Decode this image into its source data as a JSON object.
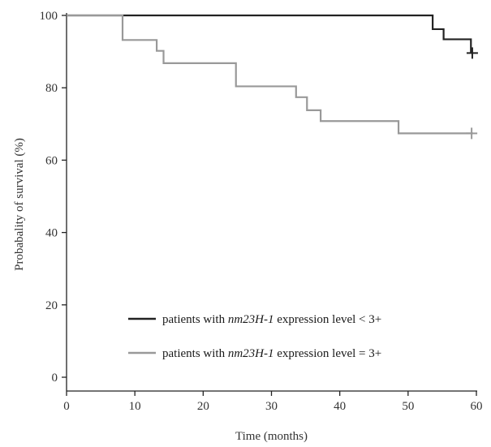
{
  "chart_data": {
    "type": "line",
    "xlabel": "Time (months)",
    "ylabel": "Probabality of survival (%)",
    "xlim": [
      0,
      60
    ],
    "ylim": [
      0,
      100
    ],
    "xticks": [
      "0",
      "10",
      "20",
      "30",
      "40",
      "50",
      "60"
    ],
    "yticks": [
      "0",
      "20",
      "40",
      "60",
      "80",
      "100"
    ],
    "grid": false,
    "legend_position": "bottom-right",
    "series": [
      {
        "legend_prefix": "patients with ",
        "legend_gene": "nm23H-1",
        "legend_suffix": " expression level < 3+",
        "color": "#222222",
        "step_x": [
          0,
          53.6,
          53.6,
          55.2,
          55.2,
          59.2,
          59.2
        ],
        "step_y": [
          100,
          100,
          96.2,
          96.2,
          93.4,
          93.4,
          89.6
        ],
        "censor": [
          [
            59.4,
            89.6
          ]
        ]
      },
      {
        "legend_prefix": "patients with ",
        "legend_gene": "nm23H-1",
        "legend_suffix": " expression level = 3+",
        "color": "#999999",
        "step_x": [
          0,
          8.2,
          8.2,
          13.2,
          13.2,
          14.2,
          14.2,
          24.8,
          24.8,
          33.6,
          33.6,
          35.2,
          35.2,
          37.2,
          37.2,
          48.6,
          48.6,
          59.5
        ],
        "step_y": [
          100,
          100,
          93.2,
          93.2,
          90.2,
          90.2,
          86.8,
          86.8,
          80.4,
          80.4,
          77.4,
          77.4,
          73.8,
          73.8,
          70.8,
          70.8,
          67.4,
          67.4
        ],
        "censor": [
          [
            59.3,
            67.4
          ]
        ]
      }
    ]
  }
}
